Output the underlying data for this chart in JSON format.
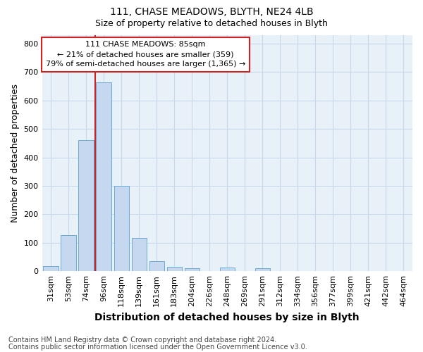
{
  "title": "111, CHASE MEADOWS, BLYTH, NE24 4LB",
  "subtitle": "Size of property relative to detached houses in Blyth",
  "xlabel": "Distribution of detached houses by size in Blyth",
  "ylabel": "Number of detached properties",
  "footnote1": "Contains HM Land Registry data © Crown copyright and database right 2024.",
  "footnote2": "Contains public sector information licensed under the Open Government Licence v3.0.",
  "bar_labels": [
    "31sqm",
    "53sqm",
    "74sqm",
    "96sqm",
    "118sqm",
    "139sqm",
    "161sqm",
    "183sqm",
    "204sqm",
    "226sqm",
    "248sqm",
    "269sqm",
    "291sqm",
    "312sqm",
    "334sqm",
    "356sqm",
    "377sqm",
    "399sqm",
    "421sqm",
    "442sqm",
    "464sqm"
  ],
  "bar_values": [
    18,
    127,
    460,
    665,
    300,
    118,
    35,
    16,
    10,
    0,
    13,
    0,
    10,
    0,
    0,
    0,
    0,
    0,
    0,
    0,
    0
  ],
  "bar_color": "#c5d8ef",
  "bar_edge_color": "#6aabd2",
  "highlight_bar_index": 3,
  "highlight_color": "#cc2222",
  "annotation_line1": "111 CHASE MEADOWS: 85sqm",
  "annotation_line2": "← 21% of detached houses are smaller (359)",
  "annotation_line3": "79% of semi-detached houses are larger (1,365) →",
  "annotation_box_color": "#cc2222",
  "ylim": [
    0,
    830
  ],
  "yticks": [
    0,
    100,
    200,
    300,
    400,
    500,
    600,
    700,
    800
  ],
  "grid_color": "#c8d8e8",
  "bg_color": "#e8f0f8",
  "title_fontsize": 10,
  "subtitle_fontsize": 9,
  "xlabel_fontsize": 10,
  "ylabel_fontsize": 9,
  "tick_fontsize": 8,
  "annotation_fontsize": 8,
  "footnote_fontsize": 7
}
